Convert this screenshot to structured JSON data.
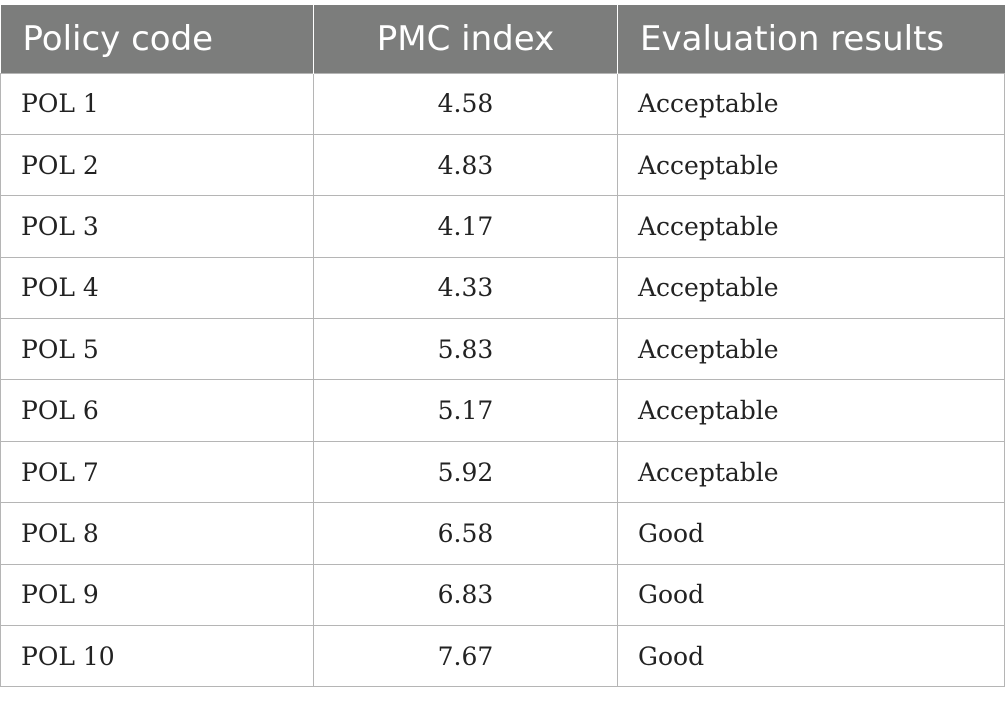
{
  "table": {
    "headers": [
      "Policy code",
      "PMC index",
      "Evaluation results"
    ],
    "rows": [
      [
        "POL 1",
        "4.58",
        "Acceptable"
      ],
      [
        "POL 2",
        "4.83",
        "Acceptable"
      ],
      [
        "POL 3",
        "4.17",
        "Acceptable"
      ],
      [
        "POL 4",
        "4.33",
        "Acceptable"
      ],
      [
        "POL 5",
        "5.83",
        "Acceptable"
      ],
      [
        "POL 6",
        "5.17",
        "Acceptable"
      ],
      [
        "POL 7",
        "5.92",
        "Acceptable"
      ],
      [
        "POL 8",
        "6.58",
        "Good"
      ],
      [
        "POL 9",
        "6.83",
        "Good"
      ],
      [
        "POL 10",
        "7.67",
        "Good"
      ]
    ]
  },
  "colors": {
    "header_background": "#7c7d7c",
    "header_text": "#ffffff",
    "grid_lines": "#b5b5b5",
    "body_text": "#222222"
  }
}
